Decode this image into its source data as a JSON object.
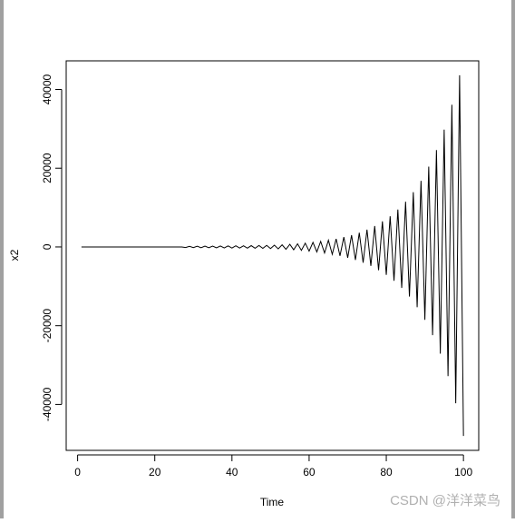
{
  "chart_data": {
    "type": "line",
    "xlabel": "Time",
    "ylabel": "x2",
    "color": "#000000",
    "x": [
      1,
      2,
      3,
      4,
      5,
      6,
      7,
      8,
      9,
      10,
      11,
      12,
      13,
      14,
      15,
      16,
      17,
      18,
      19,
      20,
      21,
      22,
      23,
      24,
      25,
      26,
      27,
      28,
      29,
      30,
      31,
      32,
      33,
      34,
      35,
      36,
      37,
      38,
      39,
      40,
      41,
      42,
      43,
      44,
      45,
      46,
      47,
      48,
      49,
      50,
      51,
      52,
      53,
      54,
      55,
      56,
      57,
      58,
      59,
      60,
      61,
      62,
      63,
      64,
      65,
      66,
      67,
      68,
      69,
      70,
      71,
      72,
      73,
      74,
      75,
      76,
      77,
      78,
      79,
      80,
      81,
      82,
      83,
      84,
      85,
      86,
      87,
      88,
      89,
      90,
      91,
      92,
      93,
      94,
      95,
      96,
      97,
      98,
      99,
      100
    ],
    "values": [
      0,
      0,
      0,
      0,
      0,
      0,
      0,
      0,
      0,
      0,
      0,
      0,
      0,
      0,
      0,
      0,
      0,
      0,
      0,
      0,
      0,
      0,
      0,
      0,
      0,
      0,
      0,
      -160,
      170,
      -180,
      190,
      -200,
      200,
      -210,
      220,
      -230,
      240,
      -250,
      260,
      -270,
      280,
      -290,
      300,
      -310,
      330,
      -340,
      360,
      -370,
      390,
      -410,
      450,
      -490,
      540,
      -600,
      660,
      -720,
      790,
      -870,
      960,
      -1060,
      1160,
      -1270,
      1400,
      -1540,
      1700,
      -1870,
      2050,
      -2250,
      2500,
      -2750,
      3000,
      -3300,
      3600,
      -4000,
      4400,
      -4800,
      5300,
      -5900,
      6500,
      -7100,
      7800,
      -8600,
      9500,
      -10400,
      11500,
      -12600,
      13900,
      -15300,
      16800,
      -18500,
      20400,
      -22400,
      24600,
      -27100,
      29800,
      -32800,
      36100,
      -39700,
      43600,
      -48000
    ],
    "xlim": [
      -2.96,
      103.96
    ],
    "ylim": [
      -51664,
      47264
    ],
    "xticks": [
      0,
      20,
      40,
      60,
      80,
      100
    ],
    "yticks": [
      -40000,
      -20000,
      0,
      20000,
      40000
    ]
  },
  "watermark": "CSDN @洋洋菜鸟"
}
